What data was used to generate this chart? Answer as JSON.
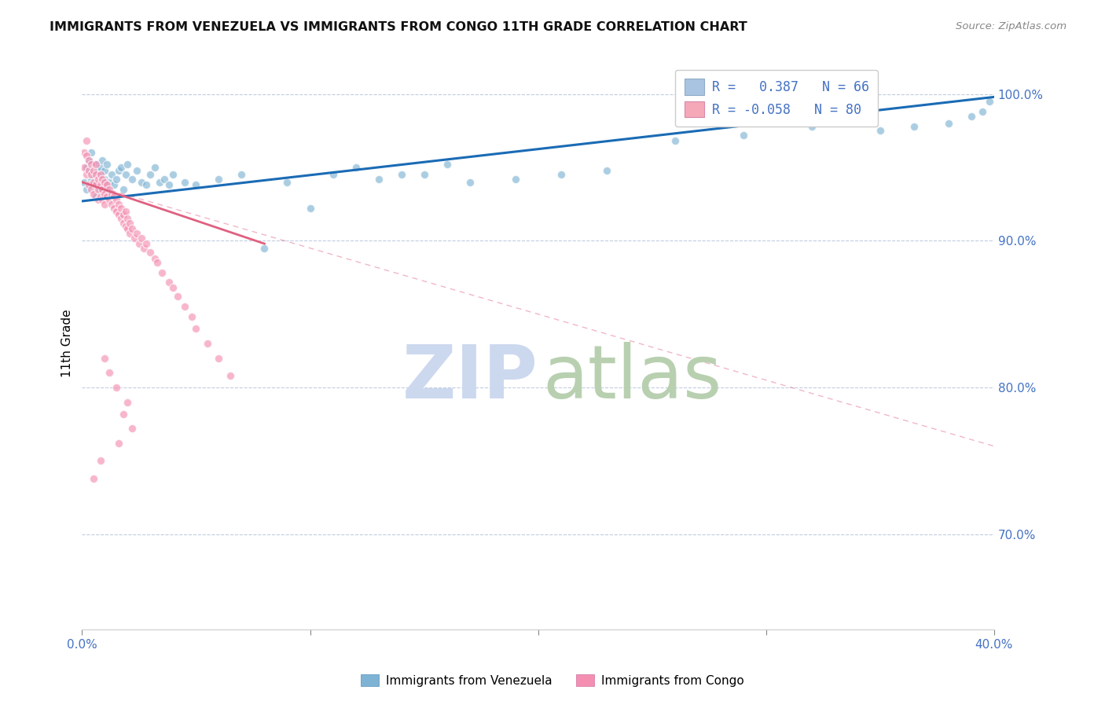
{
  "title": "IMMIGRANTS FROM VENEZUELA VS IMMIGRANTS FROM CONGO 11TH GRADE CORRELATION CHART",
  "source": "Source: ZipAtlas.com",
  "ylabel": "11th Grade",
  "yticks": [
    "70.0%",
    "80.0%",
    "90.0%",
    "100.0%"
  ],
  "ytick_vals": [
    0.7,
    0.8,
    0.9,
    1.0
  ],
  "xlim": [
    0.0,
    0.4
  ],
  "ylim": [
    0.635,
    1.025
  ],
  "legend_r1": "R =   0.387   N = 66",
  "legend_r2": "R = -0.058   N = 80",
  "legend_color1": "#a8c4e0",
  "legend_color2": "#f4a8b8",
  "scatter_venezuela_color": "#7fb3d3",
  "scatter_congo_color": "#f48fb1",
  "trend_venezuela_color": "#1a6bb5",
  "trend_congo_solid_color": "#e06080",
  "trend_congo_dashed_color": "#f0a0b8",
  "watermark_zip_color": "#ccd8ee",
  "watermark_atlas_color": "#b8d0b0",
  "venezuela_x": [
    0.001,
    0.002,
    0.002,
    0.003,
    0.003,
    0.004,
    0.004,
    0.005,
    0.005,
    0.006,
    0.006,
    0.007,
    0.007,
    0.008,
    0.008,
    0.009,
    0.009,
    0.01,
    0.01,
    0.011,
    0.011,
    0.012,
    0.013,
    0.014,
    0.015,
    0.016,
    0.017,
    0.018,
    0.019,
    0.02,
    0.022,
    0.024,
    0.026,
    0.028,
    0.03,
    0.032,
    0.034,
    0.036,
    0.038,
    0.04,
    0.045,
    0.05,
    0.06,
    0.07,
    0.08,
    0.09,
    0.1,
    0.11,
    0.12,
    0.13,
    0.14,
    0.15,
    0.16,
    0.17,
    0.19,
    0.21,
    0.23,
    0.26,
    0.29,
    0.32,
    0.35,
    0.365,
    0.38,
    0.39,
    0.395,
    0.398
  ],
  "venezuela_y": [
    0.94,
    0.935,
    0.95,
    0.948,
    0.955,
    0.942,
    0.96,
    0.938,
    0.945,
    0.952,
    0.93,
    0.948,
    0.935,
    0.945,
    0.95,
    0.938,
    0.955,
    0.942,
    0.948,
    0.935,
    0.952,
    0.94,
    0.945,
    0.938,
    0.942,
    0.948,
    0.95,
    0.935,
    0.945,
    0.952,
    0.942,
    0.948,
    0.94,
    0.938,
    0.945,
    0.95,
    0.94,
    0.942,
    0.938,
    0.945,
    0.94,
    0.938,
    0.942,
    0.945,
    0.895,
    0.94,
    0.922,
    0.945,
    0.95,
    0.942,
    0.945,
    0.945,
    0.952,
    0.94,
    0.942,
    0.945,
    0.948,
    0.968,
    0.972,
    0.978,
    0.975,
    0.978,
    0.98,
    0.985,
    0.988,
    0.995
  ],
  "congo_x": [
    0.001,
    0.001,
    0.002,
    0.002,
    0.002,
    0.003,
    0.003,
    0.003,
    0.004,
    0.004,
    0.004,
    0.005,
    0.005,
    0.005,
    0.006,
    0.006,
    0.006,
    0.007,
    0.007,
    0.007,
    0.008,
    0.008,
    0.008,
    0.009,
    0.009,
    0.009,
    0.01,
    0.01,
    0.01,
    0.011,
    0.011,
    0.012,
    0.012,
    0.013,
    0.013,
    0.014,
    0.014,
    0.015,
    0.015,
    0.016,
    0.016,
    0.017,
    0.017,
    0.018,
    0.018,
    0.019,
    0.019,
    0.02,
    0.02,
    0.021,
    0.021,
    0.022,
    0.023,
    0.024,
    0.025,
    0.026,
    0.027,
    0.028,
    0.03,
    0.032,
    0.033,
    0.035,
    0.038,
    0.04,
    0.042,
    0.045,
    0.048,
    0.05,
    0.055,
    0.06,
    0.065,
    0.01,
    0.012,
    0.015,
    0.02,
    0.018,
    0.022,
    0.016,
    0.008,
    0.005
  ],
  "congo_y": [
    0.96,
    0.95,
    0.968,
    0.958,
    0.945,
    0.955,
    0.948,
    0.938,
    0.952,
    0.945,
    0.935,
    0.948,
    0.94,
    0.932,
    0.952,
    0.945,
    0.938,
    0.942,
    0.935,
    0.928,
    0.945,
    0.938,
    0.93,
    0.942,
    0.935,
    0.928,
    0.94,
    0.932,
    0.925,
    0.938,
    0.93,
    0.935,
    0.928,
    0.932,
    0.925,
    0.93,
    0.922,
    0.928,
    0.92,
    0.925,
    0.918,
    0.922,
    0.915,
    0.918,
    0.912,
    0.92,
    0.91,
    0.915,
    0.908,
    0.912,
    0.905,
    0.908,
    0.902,
    0.905,
    0.898,
    0.902,
    0.895,
    0.898,
    0.892,
    0.888,
    0.885,
    0.878,
    0.872,
    0.868,
    0.862,
    0.855,
    0.848,
    0.84,
    0.83,
    0.82,
    0.808,
    0.82,
    0.81,
    0.8,
    0.79,
    0.782,
    0.772,
    0.762,
    0.75,
    0.738
  ],
  "venezuela_trend_x": [
    0.0,
    0.4
  ],
  "venezuela_trend_y": [
    0.927,
    0.998
  ],
  "congo_solid_trend_x": [
    0.0,
    0.08
  ],
  "congo_solid_trend_y": [
    0.94,
    0.898
  ],
  "congo_dashed_trend_x": [
    0.0,
    0.4
  ],
  "congo_dashed_trend_y": [
    0.94,
    0.76
  ]
}
